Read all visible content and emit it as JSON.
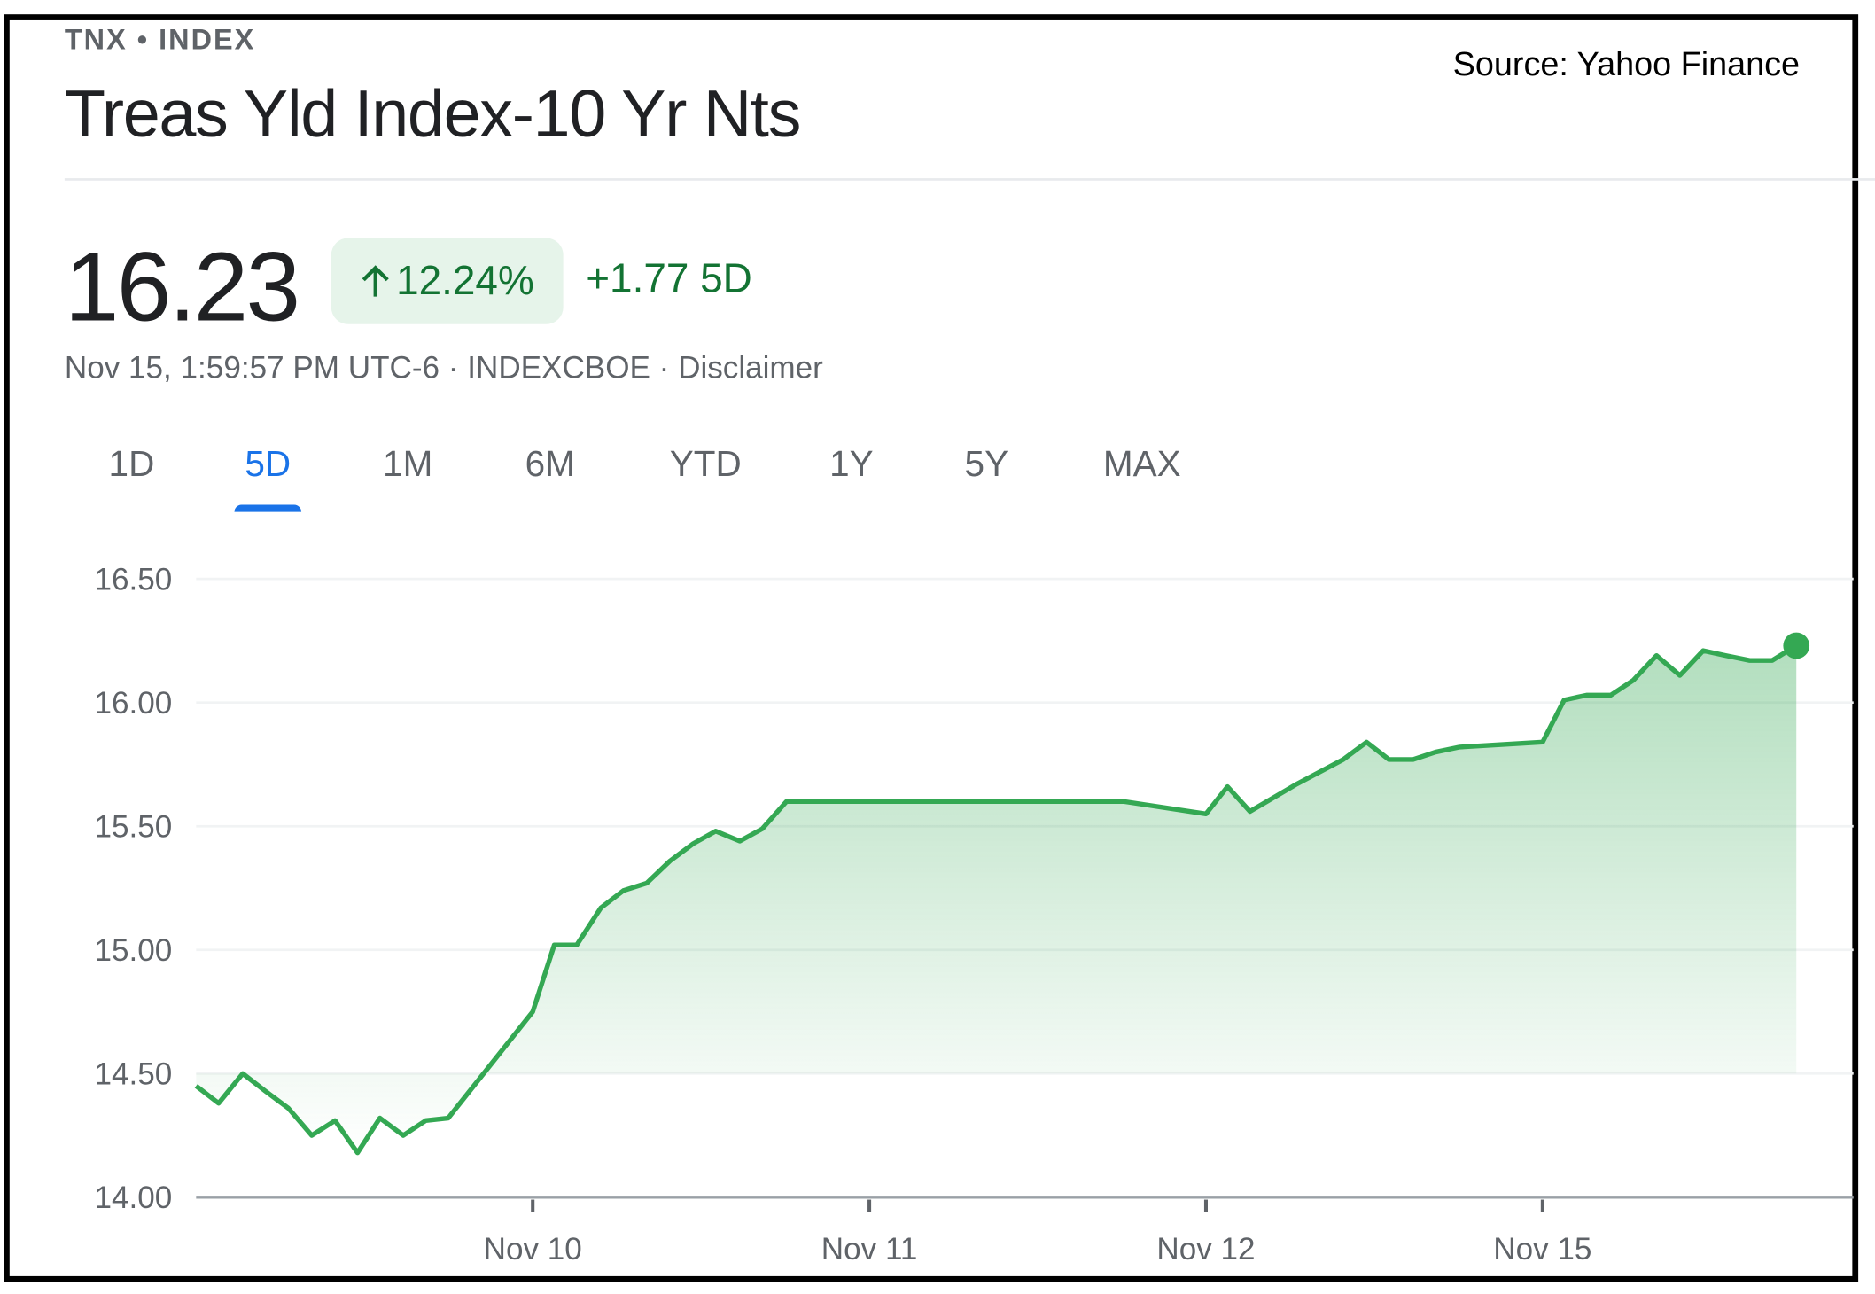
{
  "header": {
    "ticker": "TNX • INDEX",
    "title": "Treas Yld Index-10 Yr Nts",
    "source": "Source: Yahoo Finance"
  },
  "quote": {
    "price": "16.23",
    "change_percent": "12.24%",
    "change_icon": "arrow-up-icon",
    "change_abs": "+1.77 5D",
    "timestamp": "Nov 15, 1:59:57 PM UTC-6",
    "separator": " · ",
    "exchange": "INDEXCBOE",
    "disclaimer": "Disclaimer"
  },
  "tabs": [
    {
      "label": "1D",
      "active": false
    },
    {
      "label": "5D",
      "active": true
    },
    {
      "label": "1M",
      "active": false
    },
    {
      "label": "6M",
      "active": false
    },
    {
      "label": "YTD",
      "active": false
    },
    {
      "label": "1Y",
      "active": false
    },
    {
      "label": "5Y",
      "active": false
    },
    {
      "label": "MAX",
      "active": false
    }
  ],
  "colors": {
    "up": "#34a853",
    "up_text": "#137333",
    "accent": "#1a73e8"
  },
  "chart_data": {
    "type": "area",
    "ylim": [
      14.0,
      16.5
    ],
    "y_ticks": [
      "16.50",
      "16.00",
      "15.50",
      "15.00",
      "14.50",
      "14.00"
    ],
    "x_ticks": [
      "Nov 10",
      "Nov 11",
      "Nov 12",
      "Nov 15"
    ],
    "grid": true,
    "points": [
      {
        "x": "Nov 9 08:30",
        "y": 14.45
      },
      {
        "x": "Nov 9 08:56",
        "y": 14.38
      },
      {
        "x": "Nov 9 09:24",
        "y": 14.5
      },
      {
        "x": "Nov 9 09:50",
        "y": 14.43
      },
      {
        "x": "Nov 9 10:17",
        "y": 14.36
      },
      {
        "x": "Nov 9 10:44",
        "y": 14.25
      },
      {
        "x": "Nov 9 11:11",
        "y": 14.31
      },
      {
        "x": "Nov 9 11:37",
        "y": 14.18
      },
      {
        "x": "Nov 9 12:03",
        "y": 14.32
      },
      {
        "x": "Nov 9 12:30",
        "y": 14.25
      },
      {
        "x": "Nov 9 12:56",
        "y": 14.31
      },
      {
        "x": "Nov 9 13:22",
        "y": 14.32
      },
      {
        "x": "Nov 10 08:30",
        "y": 14.75
      },
      {
        "x": "Nov 10 08:55",
        "y": 15.02
      },
      {
        "x": "Nov 10 09:21",
        "y": 15.02
      },
      {
        "x": "Nov 10 09:49",
        "y": 15.17
      },
      {
        "x": "Nov 10 10:15",
        "y": 15.24
      },
      {
        "x": "Nov 10 10:42",
        "y": 15.27
      },
      {
        "x": "Nov 10 11:09",
        "y": 15.36
      },
      {
        "x": "Nov 10 11:36",
        "y": 15.43
      },
      {
        "x": "Nov 10 12:02",
        "y": 15.48
      },
      {
        "x": "Nov 10 12:30",
        "y": 15.44
      },
      {
        "x": "Nov 10 12:56",
        "y": 15.49
      },
      {
        "x": "Nov 10 13:24",
        "y": 15.6
      },
      {
        "x": "Nov 11 13:25",
        "y": 15.6
      },
      {
        "x": "Nov 12 08:30",
        "y": 15.55
      },
      {
        "x": "Nov 12 08:55",
        "y": 15.66
      },
      {
        "x": "Nov 12 09:21",
        "y": 15.56
      },
      {
        "x": "Nov 12 10:15",
        "y": 15.67
      },
      {
        "x": "Nov 12 11:09",
        "y": 15.77
      },
      {
        "x": "Nov 12 11:36",
        "y": 15.84
      },
      {
        "x": "Nov 12 12:02",
        "y": 15.77
      },
      {
        "x": "Nov 12 12:30",
        "y": 15.77
      },
      {
        "x": "Nov 12 12:56",
        "y": 15.8
      },
      {
        "x": "Nov 12 13:24",
        "y": 15.82
      },
      {
        "x": "Nov 15 08:30",
        "y": 15.84
      },
      {
        "x": "Nov 15 08:55",
        "y": 16.01
      },
      {
        "x": "Nov 15 09:21",
        "y": 16.03
      },
      {
        "x": "Nov 15 09:49",
        "y": 16.03
      },
      {
        "x": "Nov 15 10:15",
        "y": 16.09
      },
      {
        "x": "Nov 15 10:42",
        "y": 16.19
      },
      {
        "x": "Nov 15 11:09",
        "y": 16.11
      },
      {
        "x": "Nov 15 11:36",
        "y": 16.21
      },
      {
        "x": "Nov 15 12:02",
        "y": 16.19
      },
      {
        "x": "Nov 15 12:30",
        "y": 16.17
      },
      {
        "x": "Nov 15 12:56",
        "y": 16.17
      },
      {
        "x": "Nov 15 13:24",
        "y": 16.23
      }
    ]
  }
}
